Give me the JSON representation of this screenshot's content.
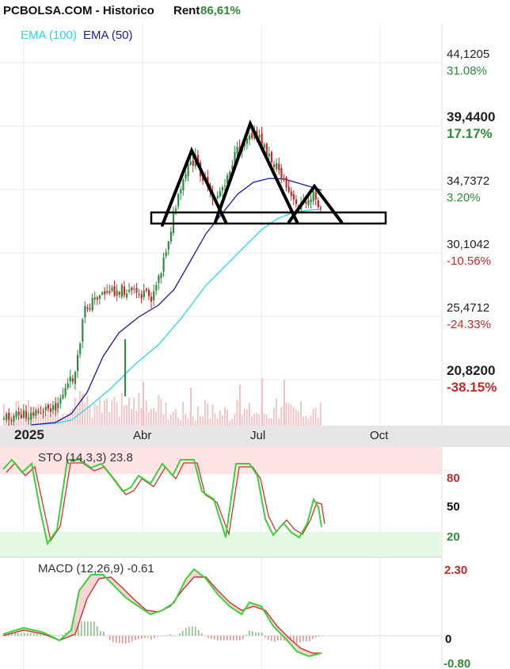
{
  "header": {
    "title": "PCBOLSA.COM - Historico",
    "rent_label": "Rent",
    "rent_value": "86,61%"
  },
  "legend": {
    "ema100": "EMA (100)",
    "ema50": "EMA (50)"
  },
  "price_axis": [
    {
      "price": "44,1205",
      "pct": "31.08%",
      "up": true,
      "bold": false
    },
    {
      "price": "39,4400",
      "pct": "17.17%",
      "up": true,
      "bold": true
    },
    {
      "price": "34,7372",
      "pct": "3.20%",
      "up": true,
      "bold": false
    },
    {
      "price": "30,1042",
      "pct": "-10.56%",
      "up": false,
      "bold": false
    },
    {
      "price": "25,4712",
      "pct": "-24.33%",
      "up": false,
      "bold": false
    },
    {
      "price": "20,8200",
      "pct": "-38.15%",
      "up": false,
      "bold": true
    }
  ],
  "time_axis": [
    {
      "label": "2025",
      "bold": true
    },
    {
      "label": "Abr",
      "bold": false
    },
    {
      "label": "Jul",
      "bold": false
    },
    {
      "label": "Oct",
      "bold": false
    }
  ],
  "sto": {
    "label": "STO (14,3,3) 23.8",
    "levels": [
      "80",
      "50",
      "20"
    ]
  },
  "macd": {
    "label": "MACD (12,26,9) -0.61",
    "levels": [
      "2.30",
      "0",
      "-0.80"
    ]
  },
  "colors": {
    "up": "#2e8b3a",
    "down": "#c62828",
    "ema100": "#27d8e8",
    "ema50": "#1a1a9c",
    "volume": "#f3c1c1",
    "sto_top_band": "#fde3e3",
    "sto_bottom_band": "#e4f9e4",
    "k_line": "#3ad13a",
    "d_line": "#d32f2f"
  },
  "chart_data": {
    "type": "candlestick",
    "x_axis_ticks": [
      "2025",
      "Abr",
      "Jul",
      "Oct"
    ],
    "y_axis_ticks": [
      44.1205,
      39.44,
      34.7372,
      30.1042,
      25.4712,
      20.82
    ],
    "series": [
      {
        "name": "EMA (100)",
        "values_approx": {
          "start": 19.6,
          "Abr": 21.0,
          "Jul": 28.0,
          "end": 31.8
        }
      },
      {
        "name": "EMA (50)",
        "values_approx": {
          "start": 19.6,
          "Abr": 24.0,
          "Jul": 33.0,
          "end": 34.2
        }
      }
    ],
    "close_path_approx": [
      [
        "2025-01",
        19.6
      ],
      [
        "2025-02",
        21.5
      ],
      [
        "2025-03",
        27.0
      ],
      [
        "2025-04",
        27.0
      ],
      [
        "2025-05",
        37.0
      ],
      [
        "2025-06",
        38.5
      ],
      [
        "2025-06-mid",
        39.8
      ],
      [
        "2025-07",
        37.5
      ],
      [
        "2025-07-end",
        33.5
      ],
      [
        "2025-08",
        34.2
      ],
      [
        "2025-08-mid",
        32.7
      ]
    ],
    "annotations": [
      "head-and-shoulders pattern",
      "neckline support box"
    ],
    "sto_last": 23.8,
    "macd_last": -0.61
  }
}
